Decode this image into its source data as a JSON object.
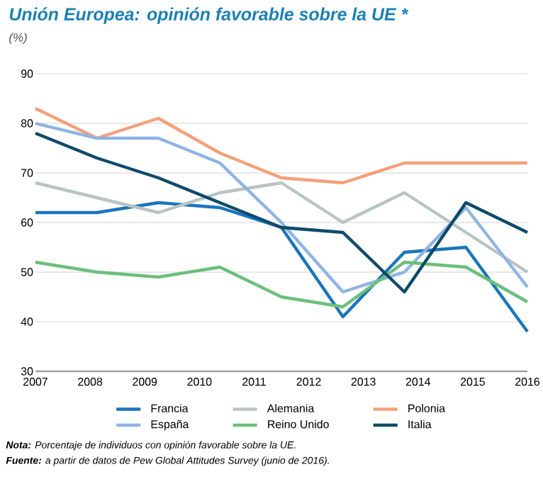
{
  "chart_data": {
    "type": "line",
    "title": "Unión Europea: opinión favorable sobre la UE *",
    "ylabel": "(%)",
    "x": [
      2007,
      2008.125,
      2009.25,
      2010.375,
      2011.5,
      2012.625,
      2013.75,
      2014.875,
      2016
    ],
    "series": [
      {
        "name": "Francia",
        "color": "#1a75bb",
        "values": [
          62,
          62,
          64,
          63,
          59,
          41,
          54,
          55,
          38
        ]
      },
      {
        "name": "Alemania",
        "color": "#b8c4c4",
        "values": [
          68,
          65,
          62,
          66,
          68,
          60,
          66,
          58,
          50
        ]
      },
      {
        "name": "Polonia",
        "color": "#f4a07a",
        "values": [
          83,
          77,
          81,
          74,
          69,
          68,
          72,
          72,
          72
        ]
      },
      {
        "name": "España",
        "color": "#8fb4e3",
        "values": [
          80,
          77,
          77,
          72,
          60,
          46,
          50,
          63,
          47
        ]
      },
      {
        "name": "Reino Unido",
        "color": "#6bbf7a",
        "values": [
          52,
          50,
          49,
          51,
          45,
          43,
          52,
          51,
          44
        ]
      },
      {
        "name": "Italia",
        "color": "#0e4a6a",
        "values": [
          78,
          73,
          69,
          64,
          59,
          58,
          46,
          64,
          58
        ]
      }
    ],
    "xlim": [
      2007,
      2016
    ],
    "xticks": [
      2007,
      2008,
      2009,
      2010,
      2011,
      2012,
      2013,
      2014,
      2015,
      2016
    ],
    "ylim": [
      30,
      90
    ],
    "yticks": [
      30,
      40,
      50,
      60,
      70,
      80,
      90
    ],
    "grid": "y",
    "legend": "bottom",
    "marker": "none",
    "line_style": "solid",
    "annotations": [
      "**Nota:** Porcentaje de individuos con opinión favorable sobre la UE.",
      "**Fuente:** a partir de datos de Pew Global Attitudes Survey (junio de 2016)."
    ]
  }
}
